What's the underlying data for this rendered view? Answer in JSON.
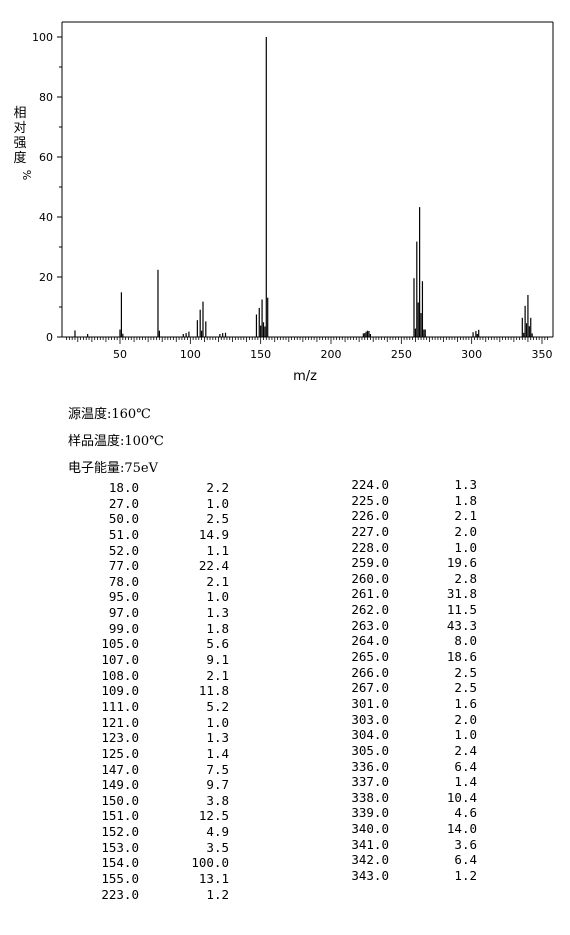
{
  "chart_data": {
    "type": "bar",
    "xlabel": "m/z",
    "ylabel": "相对强度 %",
    "xlim": [
      10,
      355
    ],
    "ylim": [
      0,
      105
    ],
    "xticks": [
      50,
      100,
      150,
      200,
      250,
      300,
      350
    ],
    "yticks": [
      0,
      20,
      40,
      60,
      80,
      100
    ],
    "grid": false,
    "color": "#000000",
    "peaks": [
      {
        "mz": 18.0,
        "intensity": 2.2
      },
      {
        "mz": 27.0,
        "intensity": 1.0
      },
      {
        "mz": 50.0,
        "intensity": 2.5
      },
      {
        "mz": 51.0,
        "intensity": 14.9
      },
      {
        "mz": 52.0,
        "intensity": 1.1
      },
      {
        "mz": 77.0,
        "intensity": 22.4
      },
      {
        "mz": 78.0,
        "intensity": 2.1
      },
      {
        "mz": 95.0,
        "intensity": 1.0
      },
      {
        "mz": 97.0,
        "intensity": 1.3
      },
      {
        "mz": 99.0,
        "intensity": 1.8
      },
      {
        "mz": 105.0,
        "intensity": 5.6
      },
      {
        "mz": 107.0,
        "intensity": 9.1
      },
      {
        "mz": 108.0,
        "intensity": 2.1
      },
      {
        "mz": 109.0,
        "intensity": 11.8
      },
      {
        "mz": 111.0,
        "intensity": 5.2
      },
      {
        "mz": 121.0,
        "intensity": 1.0
      },
      {
        "mz": 123.0,
        "intensity": 1.3
      },
      {
        "mz": 125.0,
        "intensity": 1.4
      },
      {
        "mz": 147.0,
        "intensity": 7.5
      },
      {
        "mz": 149.0,
        "intensity": 9.7
      },
      {
        "mz": 150.0,
        "intensity": 3.8
      },
      {
        "mz": 151.0,
        "intensity": 12.5
      },
      {
        "mz": 152.0,
        "intensity": 4.9
      },
      {
        "mz": 153.0,
        "intensity": 3.5
      },
      {
        "mz": 154.0,
        "intensity": 100.0
      },
      {
        "mz": 155.0,
        "intensity": 13.1
      },
      {
        "mz": 223.0,
        "intensity": 1.2
      },
      {
        "mz": 224.0,
        "intensity": 1.3
      },
      {
        "mz": 225.0,
        "intensity": 1.8
      },
      {
        "mz": 226.0,
        "intensity": 2.1
      },
      {
        "mz": 227.0,
        "intensity": 2.0
      },
      {
        "mz": 228.0,
        "intensity": 1.0
      },
      {
        "mz": 259.0,
        "intensity": 19.6
      },
      {
        "mz": 260.0,
        "intensity": 2.8
      },
      {
        "mz": 261.0,
        "intensity": 31.8
      },
      {
        "mz": 262.0,
        "intensity": 11.5
      },
      {
        "mz": 263.0,
        "intensity": 43.3
      },
      {
        "mz": 264.0,
        "intensity": 8.0
      },
      {
        "mz": 265.0,
        "intensity": 18.6
      },
      {
        "mz": 266.0,
        "intensity": 2.5
      },
      {
        "mz": 267.0,
        "intensity": 2.5
      },
      {
        "mz": 301.0,
        "intensity": 1.6
      },
      {
        "mz": 303.0,
        "intensity": 2.0
      },
      {
        "mz": 304.0,
        "intensity": 1.0
      },
      {
        "mz": 305.0,
        "intensity": 2.4
      },
      {
        "mz": 336.0,
        "intensity": 6.4
      },
      {
        "mz": 337.0,
        "intensity": 1.4
      },
      {
        "mz": 338.0,
        "intensity": 10.4
      },
      {
        "mz": 339.0,
        "intensity": 4.6
      },
      {
        "mz": 340.0,
        "intensity": 14.0
      },
      {
        "mz": 341.0,
        "intensity": 3.6
      },
      {
        "mz": 342.0,
        "intensity": 6.4
      },
      {
        "mz": 343.0,
        "intensity": 1.2
      }
    ]
  },
  "conditions": {
    "source_temp": "源温度:160℃",
    "sample_temp": "样品温度:100℃",
    "electron_energy": "电子能量:75eV"
  },
  "table": {
    "left": {
      "mz": [
        "18.0",
        "27.0",
        "50.0",
        "51.0",
        "52.0",
        "77.0",
        "78.0",
        "95.0",
        "97.0",
        "99.0",
        "105.0",
        "107.0",
        "108.0",
        "109.0",
        "111.0",
        "121.0",
        "123.0",
        "125.0",
        "147.0",
        "149.0",
        "150.0",
        "151.0",
        "152.0",
        "153.0",
        "154.0",
        "155.0",
        "223.0"
      ],
      "ab": [
        "2.2",
        "1.0",
        "2.5",
        "14.9",
        "1.1",
        "22.4",
        "2.1",
        "1.0",
        "1.3",
        "1.8",
        "5.6",
        "9.1",
        "2.1",
        "11.8",
        "5.2",
        "1.0",
        "1.3",
        "1.4",
        "7.5",
        "9.7",
        "3.8",
        "12.5",
        "4.9",
        "3.5",
        "100.0",
        "13.1",
        "1.2"
      ]
    },
    "right": {
      "mz": [
        "224.0",
        "225.0",
        "226.0",
        "227.0",
        "228.0",
        "259.0",
        "260.0",
        "261.0",
        "262.0",
        "263.0",
        "264.0",
        "265.0",
        "266.0",
        "267.0",
        "301.0",
        "303.0",
        "304.0",
        "305.0",
        "336.0",
        "337.0",
        "338.0",
        "339.0",
        "340.0",
        "341.0",
        "342.0",
        "343.0"
      ],
      "ab": [
        "1.3",
        "1.8",
        "2.1",
        "2.0",
        "1.0",
        "19.6",
        "2.8",
        "31.8",
        "11.5",
        "43.3",
        "8.0",
        "18.6",
        "2.5",
        "2.5",
        "1.6",
        "2.0",
        "1.0",
        "2.4",
        "6.4",
        "1.4",
        "10.4",
        "4.6",
        "14.0",
        "3.6",
        "6.4",
        "1.2"
      ]
    }
  }
}
